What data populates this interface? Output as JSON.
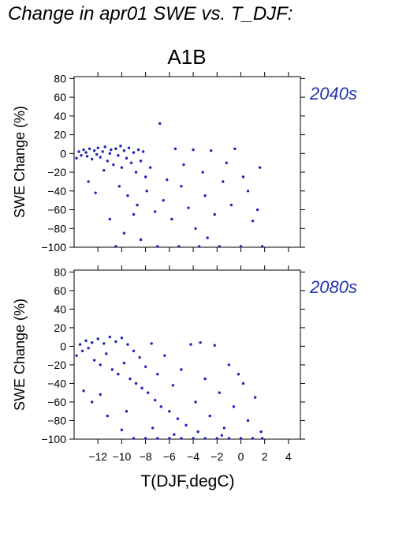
{
  "page_title": "Change in apr01 SWE vs. T_DJF:",
  "scenario_label": "A1B",
  "colors": {
    "points": "#2222bb",
    "period_label": "#2233aa",
    "axes": "#000000"
  },
  "chart_data": [
    {
      "type": "scatter",
      "period_label": "2040s",
      "xlabel": "",
      "ylabel": "SWE Change (%)",
      "xlim": [
        -14,
        5
      ],
      "ylim": [
        -100,
        82
      ],
      "xticks": [
        -12,
        -10,
        -8,
        -6,
        -4,
        -2,
        0,
        2,
        4
      ],
      "xtick_labels_shown": false,
      "yticks": [
        80,
        60,
        40,
        20,
        0,
        -20,
        -40,
        -60,
        -80,
        -100
      ],
      "ytick_labels": [
        "80",
        "60",
        "40",
        "20",
        "0",
        "−20",
        "−40",
        "−60",
        "−80",
        "−100"
      ],
      "points_estimated": [
        [
          -13.8,
          -5
        ],
        [
          -13.6,
          2
        ],
        [
          -13.4,
          -2
        ],
        [
          -13.2,
          4
        ],
        [
          -13.0,
          1
        ],
        [
          -12.9,
          -3
        ],
        [
          -12.7,
          5
        ],
        [
          -12.5,
          -6
        ],
        [
          -12.3,
          3
        ],
        [
          -12.1,
          -1
        ],
        [
          -12.0,
          6
        ],
        [
          -11.8,
          -4
        ],
        [
          -11.6,
          2
        ],
        [
          -11.4,
          7
        ],
        [
          -11.2,
          -8
        ],
        [
          -11.0,
          0
        ],
        [
          -10.9,
          4
        ],
        [
          -10.7,
          -12
        ],
        [
          -10.5,
          5
        ],
        [
          -10.3,
          -2
        ],
        [
          -10.1,
          8
        ],
        [
          -10.0,
          -15
        ],
        [
          -9.8,
          3
        ],
        [
          -9.6,
          -5
        ],
        [
          -9.4,
          6
        ],
        [
          -9.2,
          -10
        ],
        [
          -9.0,
          1
        ],
        [
          -8.8,
          -20
        ],
        [
          -8.6,
          4
        ],
        [
          -8.4,
          -8
        ],
        [
          -8.2,
          2
        ],
        [
          -8.0,
          -25
        ],
        [
          -12.8,
          -30
        ],
        [
          -11.5,
          -18
        ],
        [
          -10.2,
          -35
        ],
        [
          -9.5,
          -45
        ],
        [
          -8.7,
          -55
        ],
        [
          -7.9,
          -40
        ],
        [
          -7.2,
          -62
        ],
        [
          -6.5,
          -50
        ],
        [
          -5.8,
          -70
        ],
        [
          -5.0,
          -35
        ],
        [
          -4.4,
          -58
        ],
        [
          -3.8,
          -80
        ],
        [
          -3.0,
          -45
        ],
        [
          -2.2,
          -65
        ],
        [
          -1.5,
          -30
        ],
        [
          -0.8,
          -55
        ],
        [
          0.2,
          -25
        ],
        [
          1.0,
          -72
        ],
        [
          1.6,
          -15
        ],
        [
          -6.8,
          32
        ],
        [
          -5.5,
          5
        ],
        [
          -4.0,
          4
        ],
        [
          -2.5,
          3
        ],
        [
          -0.5,
          5
        ],
        [
          -11.0,
          -70
        ],
        [
          -9.8,
          -85
        ],
        [
          -8.4,
          -92
        ],
        [
          -7.0,
          -100
        ],
        [
          -5.2,
          -100
        ],
        [
          -3.5,
          -100
        ],
        [
          -1.8,
          -100
        ],
        [
          0.0,
          -100
        ],
        [
          1.8,
          -100
        ],
        [
          -10.5,
          -100
        ],
        [
          -12.2,
          -42
        ],
        [
          -7.6,
          -15
        ],
        [
          -6.2,
          -28
        ],
        [
          -4.8,
          -12
        ],
        [
          -3.2,
          -20
        ],
        [
          -1.2,
          -10
        ],
        [
          0.6,
          -40
        ],
        [
          1.4,
          -60
        ],
        [
          -2.8,
          -90
        ],
        [
          -9.0,
          -65
        ]
      ]
    },
    {
      "type": "scatter",
      "period_label": "2080s",
      "xlabel": "T(DJF,degC)",
      "ylabel": "SWE Change (%)",
      "xlim": [
        -14,
        5
      ],
      "ylim": [
        -100,
        82
      ],
      "xticks": [
        -12,
        -10,
        -8,
        -6,
        -4,
        -2,
        0,
        2,
        4
      ],
      "xtick_labels": [
        "−12",
        "−10",
        "−8",
        "−6",
        "−4",
        "−2",
        "0",
        "2",
        "4"
      ],
      "xtick_labels_shown": true,
      "yticks": [
        80,
        60,
        40,
        20,
        0,
        -20,
        -40,
        -60,
        -80,
        -100
      ],
      "ytick_labels": [
        "80",
        "60",
        "40",
        "20",
        "0",
        "−20",
        "−40",
        "−60",
        "−80",
        "−100"
      ],
      "points_estimated": [
        [
          -13.8,
          -10
        ],
        [
          -13.5,
          2
        ],
        [
          -13.3,
          -5
        ],
        [
          -13.0,
          6
        ],
        [
          -12.8,
          -2
        ],
        [
          -12.5,
          4
        ],
        [
          -12.3,
          -15
        ],
        [
          -12.0,
          8
        ],
        [
          -11.8,
          -20
        ],
        [
          -11.5,
          3
        ],
        [
          -11.3,
          -8
        ],
        [
          -11.0,
          10
        ],
        [
          -10.8,
          -25
        ],
        [
          -10.5,
          5
        ],
        [
          -10.3,
          -30
        ],
        [
          -10.0,
          9
        ],
        [
          -9.8,
          -18
        ],
        [
          -9.5,
          2
        ],
        [
          -9.3,
          -35
        ],
        [
          -9.0,
          -5
        ],
        [
          -8.8,
          -40
        ],
        [
          -8.5,
          -12
        ],
        [
          -8.3,
          -45
        ],
        [
          -8.0,
          -22
        ],
        [
          -7.8,
          -50
        ],
        [
          -7.5,
          3
        ],
        [
          -7.2,
          -58
        ],
        [
          -7.0,
          -30
        ],
        [
          -6.7,
          -65
        ],
        [
          -6.4,
          -10
        ],
        [
          -6.0,
          -70
        ],
        [
          -5.7,
          -42
        ],
        [
          -5.3,
          -78
        ],
        [
          -5.0,
          -25
        ],
        [
          -4.6,
          -85
        ],
        [
          -4.2,
          2
        ],
        [
          -3.8,
          -60
        ],
        [
          -3.4,
          4
        ],
        [
          -3.0,
          -35
        ],
        [
          -2.6,
          -75
        ],
        [
          -2.2,
          1
        ],
        [
          -1.8,
          -50
        ],
        [
          -1.4,
          -88
        ],
        [
          -1.0,
          -20
        ],
        [
          -0.6,
          -65
        ],
        [
          -0.2,
          -30
        ],
        [
          0.2,
          -40
        ],
        [
          0.6,
          -80
        ],
        [
          1.2,
          -55
        ],
        [
          1.7,
          -92
        ],
        [
          -12.5,
          -60
        ],
        [
          -11.2,
          -75
        ],
        [
          -10.0,
          -90
        ],
        [
          -9.0,
          -100
        ],
        [
          -8.0,
          -100
        ],
        [
          -7.0,
          -100
        ],
        [
          -6.0,
          -100
        ],
        [
          -5.0,
          -100
        ],
        [
          -4.0,
          -100
        ],
        [
          -3.0,
          -100
        ],
        [
          -2.0,
          -100
        ],
        [
          -1.0,
          -100
        ],
        [
          0.0,
          -100
        ],
        [
          1.0,
          -100
        ],
        [
          1.8,
          -100
        ],
        [
          -13.2,
          -48
        ],
        [
          -11.8,
          -52
        ],
        [
          -9.6,
          -70
        ],
        [
          -7.4,
          -88
        ],
        [
          -5.6,
          -95
        ],
        [
          -3.6,
          -92
        ],
        [
          -1.6,
          -96
        ]
      ]
    }
  ]
}
